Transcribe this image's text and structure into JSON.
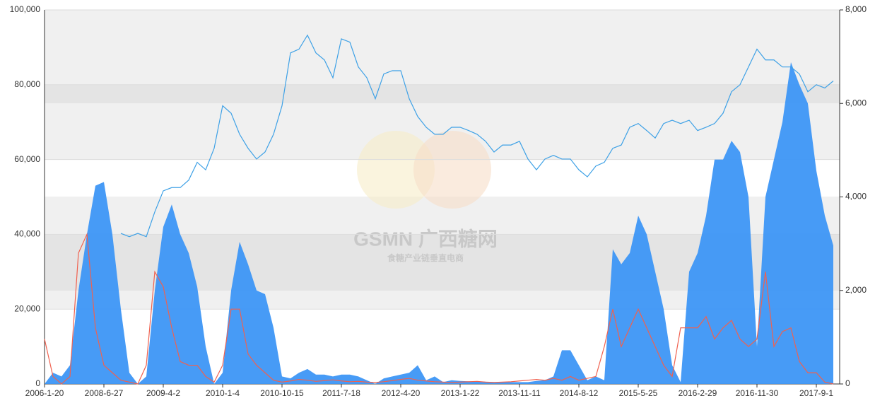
{
  "chart_data": {
    "type": "area-line",
    "watermark": {
      "brand": "GSMN 广西糖网",
      "slogan": "食糖产业链垂直电商"
    },
    "categories": [
      "2006-1-20",
      null,
      null,
      null,
      null,
      null,
      null,
      "2008-6-27",
      null,
      null,
      null,
      null,
      null,
      null,
      "2009-4-2",
      null,
      null,
      null,
      null,
      null,
      null,
      "2010-1-4",
      null,
      null,
      null,
      null,
      null,
      null,
      "2010-10-15",
      null,
      null,
      null,
      null,
      null,
      null,
      "2011-7-18",
      null,
      null,
      null,
      null,
      null,
      null,
      "2012-4-20",
      null,
      null,
      null,
      null,
      null,
      null,
      "2013-1-22",
      null,
      null,
      null,
      null,
      null,
      null,
      "2013-11-11",
      null,
      null,
      null,
      null,
      null,
      null,
      "2014-8-12",
      null,
      null,
      null,
      null,
      null,
      null,
      "2015-5-25",
      null,
      null,
      null,
      null,
      null,
      null,
      "2016-2-29",
      null,
      null,
      null,
      null,
      null,
      null,
      "2016-11-30",
      null,
      null,
      null,
      null,
      null,
      null,
      "2017-9-1",
      null,
      null
    ],
    "series": [
      {
        "kind": "area",
        "color": "#3d96f5",
        "values": [
          0,
          3000,
          2000,
          5000,
          25000,
          40000,
          53000,
          54000,
          40000,
          20000,
          3000,
          0,
          2000,
          25000,
          42000,
          48000,
          40000,
          35000,
          26000,
          10000,
          0,
          3000,
          25000,
          38000,
          32000,
          25000,
          24000,
          15000,
          2000,
          1500,
          3000,
          4000,
          2500,
          2500,
          2000,
          2500,
          2500,
          2000,
          1000,
          0,
          1500,
          2000,
          2500,
          3000,
          5000,
          1000,
          2000,
          500,
          1000,
          800,
          700,
          700,
          600,
          500,
          500,
          500,
          500,
          500,
          800,
          1000,
          2000,
          9000,
          9000,
          5000,
          1000,
          2000,
          1000,
          36000,
          32000,
          35000,
          45000,
          40000,
          30000,
          20000,
          5000,
          500,
          30000,
          35000,
          45000,
          60000,
          60000,
          65000,
          62000,
          50000,
          10000,
          50000,
          60000,
          70000,
          86000,
          80000,
          75000,
          57000,
          45000,
          37000
        ]
      },
      {
        "kind": "line",
        "color": "#f0614f",
        "values": [
          12000,
          2000,
          0,
          2000,
          35000,
          40000,
          15000,
          5000,
          3000,
          1000,
          500,
          0,
          5000,
          30000,
          26000,
          15000,
          6000,
          5000,
          5000,
          2000,
          500,
          5000,
          20000,
          20000,
          8000,
          5000,
          3000,
          1000,
          500,
          800,
          1200,
          1000,
          700,
          900,
          1100,
          800,
          600,
          700,
          500,
          400,
          600,
          900,
          1200,
          1500,
          1000,
          800,
          600,
          500,
          400,
          500,
          600,
          700,
          500,
          400,
          500,
          600,
          800,
          1000,
          1200,
          1000,
          1500,
          1000,
          2000,
          1000,
          1500,
          2000,
          10000,
          20000,
          10000,
          15000,
          20000,
          15000,
          10000,
          5000,
          2000,
          15000,
          15000,
          15000,
          18000,
          12000,
          15000,
          17000,
          12000,
          10000,
          12000,
          30000,
          10000,
          14000,
          15000,
          6000,
          3000,
          3000,
          500,
          0
        ]
      },
      {
        "kind": "line",
        "color": "#3ea1e6",
        "axis": "y2",
        "values": [
          null,
          null,
          null,
          null,
          null,
          null,
          null,
          null,
          null,
          3220,
          3150,
          3220,
          3150,
          3680,
          4130,
          4200,
          4200,
          4360,
          4740,
          4580,
          5040,
          5950,
          5790,
          5340,
          5040,
          4810,
          4960,
          5340,
          5950,
          7080,
          7160,
          7460,
          7080,
          6930,
          6550,
          7380,
          7310,
          6780,
          6550,
          6100,
          6630,
          6700,
          6700,
          6100,
          5720,
          5490,
          5340,
          5340,
          5490,
          5490,
          5420,
          5340,
          5190,
          4960,
          5110,
          5110,
          5190,
          4810,
          4580,
          4810,
          4890,
          4810,
          4810,
          4580,
          4430,
          4660,
          4740,
          5040,
          5110,
          5490,
          5570,
          5420,
          5260,
          5570,
          5640,
          5570,
          5640,
          5420,
          5490,
          5570,
          5790,
          6250,
          6400,
          6780,
          7160,
          6930,
          6930,
          6780,
          6780,
          6630,
          6250,
          6400,
          6330,
          6480
        ]
      }
    ],
    "ylim": [
      0,
      100000
    ],
    "yticks": [
      0,
      {
        "value": 20000,
        "label": "20,000"
      },
      {
        "value": 40000,
        "label": "40,000"
      },
      {
        "value": 60000,
        "label": "60,000"
      },
      {
        "value": 80000,
        "label": "80,000"
      },
      {
        "value": 100000,
        "label": "100,000"
      }
    ],
    "y2lim": [
      0,
      8000
    ],
    "y2ticks": [
      0,
      {
        "value": 2000,
        "label": "2,000"
      },
      {
        "value": 4000,
        "label": "4,000"
      },
      {
        "value": 6000,
        "label": "6,000"
      },
      {
        "value": 8000,
        "label": "8,000"
      }
    ]
  }
}
